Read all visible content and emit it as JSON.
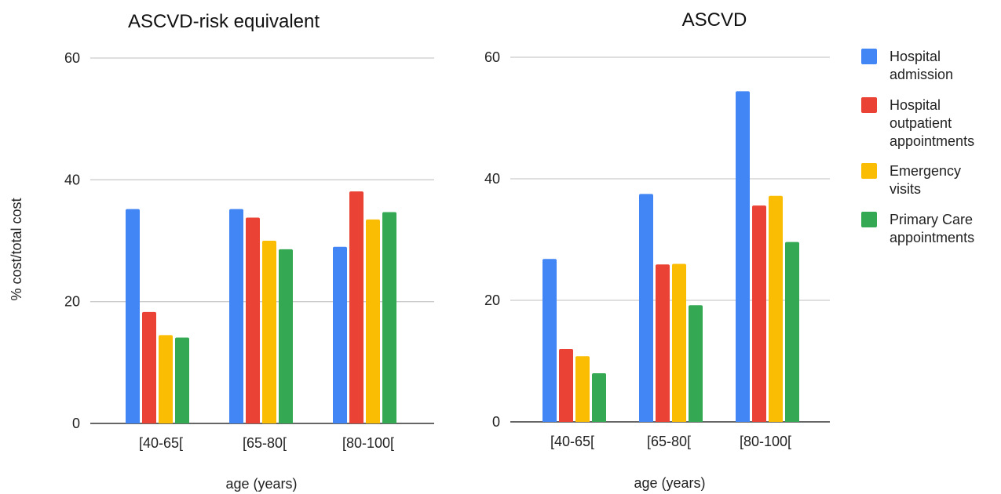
{
  "colors": {
    "hospital_admission": "#4285F4",
    "hospital_outpatient": "#EA4335",
    "emergency": "#FBBC04",
    "primary_care": "#34A853"
  },
  "legend": [
    {
      "lines": [
        "Hospital",
        "admission"
      ],
      "color": "#4285F4"
    },
    {
      "lines": [
        "Hospital",
        "outpatient",
        "appointments"
      ],
      "color": "#EA4335"
    },
    {
      "lines": [
        "Emergency",
        "visits"
      ],
      "color": "#FBBC04"
    },
    {
      "lines": [
        "Primary Care",
        "appointments"
      ],
      "color": "#34A853"
    }
  ],
  "shared": {
    "ylabel": "% cost/total cost",
    "xlabel": "age (years)"
  },
  "chart_data": [
    {
      "type": "bar",
      "title": "ASCVD-risk equivalent",
      "categories": [
        "[40-65[",
        "[65-80[",
        "[80-100["
      ],
      "xlabel": "age (years)",
      "ylabel": "% cost/total cost",
      "ylim": [
        0,
        60
      ],
      "yticks": [
        "0",
        "20",
        "40",
        "60"
      ],
      "grid": true,
      "series": [
        {
          "name": "Hospital admission",
          "values": [
            35.2,
            35.2,
            29.0
          ]
        },
        {
          "name": "Hospital outpatient appointments",
          "values": [
            18.3,
            33.8,
            38.1
          ]
        },
        {
          "name": "Emergency visits",
          "values": [
            14.5,
            30.0,
            33.5
          ]
        },
        {
          "name": "Primary Care appointments",
          "values": [
            14.1,
            28.6,
            34.7
          ]
        }
      ]
    },
    {
      "type": "bar",
      "title": "ASCVD",
      "categories": [
        "[40-65[",
        "[65-80[",
        "[80-100["
      ],
      "xlabel": "age (years)",
      "ylabel": "",
      "ylim": [
        0,
        60
      ],
      "yticks": [
        "0",
        "20",
        "40",
        "60"
      ],
      "grid": true,
      "legend_position": "right",
      "series": [
        {
          "name": "Hospital admission",
          "values": [
            26.8,
            37.5,
            54.4
          ]
        },
        {
          "name": "Hospital outpatient appointments",
          "values": [
            12.0,
            25.9,
            35.6
          ]
        },
        {
          "name": "Emergency visits",
          "values": [
            10.8,
            26.0,
            37.2
          ]
        },
        {
          "name": "Primary Care appointments",
          "values": [
            8.0,
            19.2,
            29.6
          ]
        }
      ]
    }
  ]
}
